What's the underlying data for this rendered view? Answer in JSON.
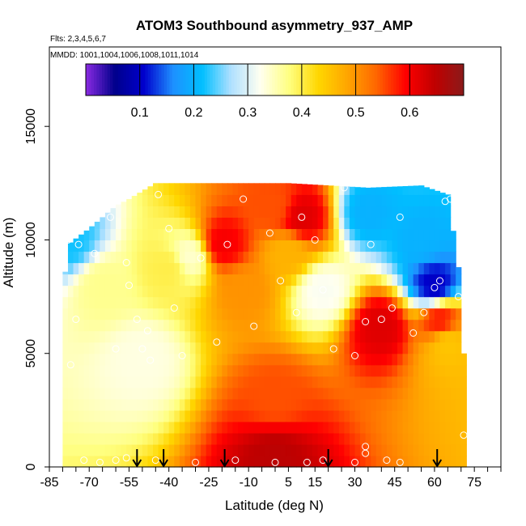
{
  "chart_data": {
    "type": "heatmap",
    "title": "ATOM3 Southbound asymmetry_937_AMP",
    "flights_label": "Flts: 2,3,4,5,6,7",
    "mmdd_label": "MMDD: 1001,1004,1006,1008,1011,1014",
    "xlabel": "Latitude (deg N)",
    "ylabel": "Altitude (m)",
    "xlim": [
      -85,
      85
    ],
    "ylim": [
      0,
      18500
    ],
    "x_ticks": [
      -85,
      -70,
      -55,
      -40,
      -25,
      -10,
      5,
      15,
      30,
      45,
      60,
      75
    ],
    "x_tick_labels": [
      "-85",
      "-70",
      "-55",
      "-40",
      "-25",
      "-10",
      "5",
      "15",
      "30",
      "45",
      "60",
      "75"
    ],
    "x_minor_tick_step": 5,
    "y_ticks": [
      0,
      5000,
      10000,
      15000
    ],
    "y_tick_labels": [
      "0",
      "5000",
      "10000",
      "15000"
    ],
    "colorbar": {
      "range": [
        0,
        0.7
      ],
      "ticks": [
        0.1,
        0.2,
        0.3,
        0.4,
        0.5,
        0.6
      ],
      "tick_labels": [
        "0.1",
        "0.2",
        "0.3",
        "0.4",
        "0.5",
        "0.6"
      ],
      "colors": [
        "#8a2be2",
        "#00008b",
        "#0000cd",
        "#1e90ff",
        "#00bfff",
        "#b0e0ff",
        "#fffff0",
        "#ffff80",
        "#ffd700",
        "#ffa500",
        "#ff6600",
        "#ff0000",
        "#c00000",
        "#8b1a1a"
      ],
      "position": "top-inside"
    },
    "profile_extent": [
      {
        "lat": -80,
        "top": 7400
      },
      {
        "lat": -78,
        "top": 9800
      },
      {
        "lat": -70,
        "top": 10500
      },
      {
        "lat": -65,
        "top": 11000
      },
      {
        "lat": -60,
        "top": 11500
      },
      {
        "lat": -55,
        "top": 11800
      },
      {
        "lat": -45,
        "top": 12500
      },
      {
        "lat": 5,
        "top": 12500
      },
      {
        "lat": 35,
        "top": 12300
      },
      {
        "lat": 55,
        "top": 12400
      },
      {
        "lat": 65,
        "top": 12000
      },
      {
        "lat": 70,
        "top": 8000
      },
      {
        "lat": 72,
        "top": 2000
      }
    ],
    "field_description_values": [
      {
        "lat": -78,
        "alt": 9900,
        "value": 0.22
      },
      {
        "lat": -65,
        "alt": 8000,
        "value": 0.37
      },
      {
        "lat": -50,
        "alt": 4800,
        "value": 0.33
      },
      {
        "lat": -40,
        "alt": 8800,
        "value": 0.4
      },
      {
        "lat": -32,
        "alt": 9300,
        "value": 0.34
      },
      {
        "lat": -20,
        "alt": 9800,
        "value": 0.6
      },
      {
        "lat": -12,
        "alt": 7800,
        "value": 0.5
      },
      {
        "lat": 0,
        "alt": 11500,
        "value": 0.55
      },
      {
        "lat": 5,
        "alt": 9500,
        "value": 0.47
      },
      {
        "lat": 10,
        "alt": 11000,
        "value": 0.62
      },
      {
        "lat": 18,
        "alt": 7800,
        "value": 0.32
      },
      {
        "lat": 35,
        "alt": 11200,
        "value": 0.2
      },
      {
        "lat": 40,
        "alt": 6200,
        "value": 0.62
      },
      {
        "lat": 55,
        "alt": 10000,
        "value": 0.2
      },
      {
        "lat": 60,
        "alt": 8000,
        "value": 0.1
      },
      {
        "lat": 62,
        "alt": 6500,
        "value": 0.58
      },
      {
        "lat": 65,
        "alt": 5500,
        "value": 0.45
      },
      {
        "lat": 0,
        "alt": 3000,
        "value": 0.55
      },
      {
        "lat": 0,
        "alt": 500,
        "value": 0.65
      }
    ],
    "observation_points": [
      {
        "lat": -78,
        "alt": 10000
      },
      {
        "lat": -74,
        "alt": 9800
      },
      {
        "lat": -75,
        "alt": 6500
      },
      {
        "lat": -68,
        "alt": 9400
      },
      {
        "lat": -62,
        "alt": 11000
      },
      {
        "lat": -56,
        "alt": 9000
      },
      {
        "lat": -55,
        "alt": 8000
      },
      {
        "lat": -52,
        "alt": 6500
      },
      {
        "lat": -50,
        "alt": 5200
      },
      {
        "lat": -48,
        "alt": 6000
      },
      {
        "lat": -47,
        "alt": 4700
      },
      {
        "lat": -44,
        "alt": 12000
      },
      {
        "lat": -40,
        "alt": 10500
      },
      {
        "lat": -38,
        "alt": 7000
      },
      {
        "lat": -35,
        "alt": 4900
      },
      {
        "lat": -28,
        "alt": 9200
      },
      {
        "lat": -22,
        "alt": 5500
      },
      {
        "lat": -18,
        "alt": 9800
      },
      {
        "lat": -12,
        "alt": 11800
      },
      {
        "lat": -8,
        "alt": 6200
      },
      {
        "lat": -2,
        "alt": 10300
      },
      {
        "lat": 2,
        "alt": 8200
      },
      {
        "lat": 8,
        "alt": 6800
      },
      {
        "lat": 10,
        "alt": 11000
      },
      {
        "lat": 15,
        "alt": 10000
      },
      {
        "lat": 18,
        "alt": 7800
      },
      {
        "lat": 22,
        "alt": 5200
      },
      {
        "lat": 26,
        "alt": 12300
      },
      {
        "lat": 30,
        "alt": 4900
      },
      {
        "lat": 34,
        "alt": 6400
      },
      {
        "lat": 36,
        "alt": 9800
      },
      {
        "lat": 40,
        "alt": 6500
      },
      {
        "lat": 44,
        "alt": 7000
      },
      {
        "lat": 47,
        "alt": 11000
      },
      {
        "lat": 52,
        "alt": 5900
      },
      {
        "lat": 56,
        "alt": 6800
      },
      {
        "lat": 60,
        "alt": 7900
      },
      {
        "lat": 62,
        "alt": 8200
      },
      {
        "lat": 64,
        "alt": 11700
      },
      {
        "lat": 66,
        "alt": 11800
      },
      {
        "lat": 69,
        "alt": 7500
      },
      {
        "lat": -72,
        "alt": 300
      },
      {
        "lat": -66,
        "alt": 200
      },
      {
        "lat": -60,
        "alt": 300
      },
      {
        "lat": -56,
        "alt": 400
      },
      {
        "lat": -45,
        "alt": 300
      },
      {
        "lat": -30,
        "alt": 200
      },
      {
        "lat": -15,
        "alt": 300
      },
      {
        "lat": 0,
        "alt": 200
      },
      {
        "lat": 12,
        "alt": 200
      },
      {
        "lat": 18,
        "alt": 300
      },
      {
        "lat": 30,
        "alt": 200
      },
      {
        "lat": 34,
        "alt": 900
      },
      {
        "lat": 34,
        "alt": 600
      },
      {
        "lat": 42,
        "alt": 300
      },
      {
        "lat": 47,
        "alt": 200
      },
      {
        "lat": 71,
        "alt": 1400
      },
      {
        "lat": -77,
        "alt": 4500
      },
      {
        "lat": -60,
        "alt": 5200
      }
    ],
    "flight_turn_markers_lat": [
      -52,
      -42,
      -19,
      20,
      61
    ]
  }
}
